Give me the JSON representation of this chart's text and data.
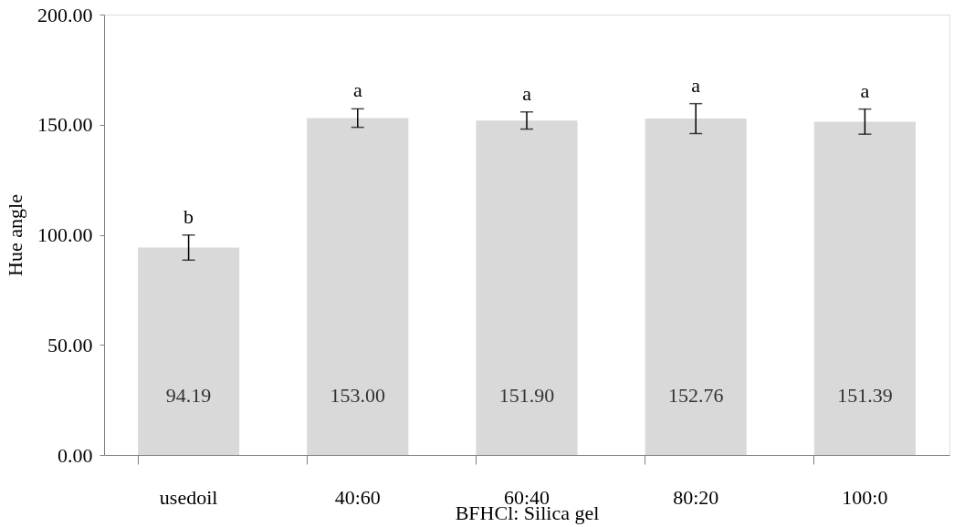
{
  "chart_data": {
    "type": "bar",
    "xlabel": "BFHCl: Silica gel",
    "ylabel": "Hue angle",
    "categories": [
      "usedoil",
      "40:60",
      "60:40",
      "80:20",
      "100:0"
    ],
    "values": [
      94.19,
      153.0,
      151.9,
      152.76,
      151.39
    ],
    "value_labels": [
      "94.19",
      "153.00",
      "151.90",
      "152.76",
      "151.39"
    ],
    "errors": [
      5.7,
      4.2,
      3.9,
      6.8,
      5.7
    ],
    "color": "#d9d9d9",
    "ylim": [
      0,
      200
    ],
    "yticks": [
      {
        "value": 0,
        "label": "0.00"
      },
      {
        "value": 50,
        "label": "50.00"
      },
      {
        "value": 100,
        "label": "100.00"
      },
      {
        "value": 150,
        "label": "150.00"
      },
      {
        "value": 200,
        "label": "200.00"
      }
    ],
    "annotations": [
      "b",
      "a",
      "a",
      "a",
      "a"
    ],
    "grid": false
  }
}
